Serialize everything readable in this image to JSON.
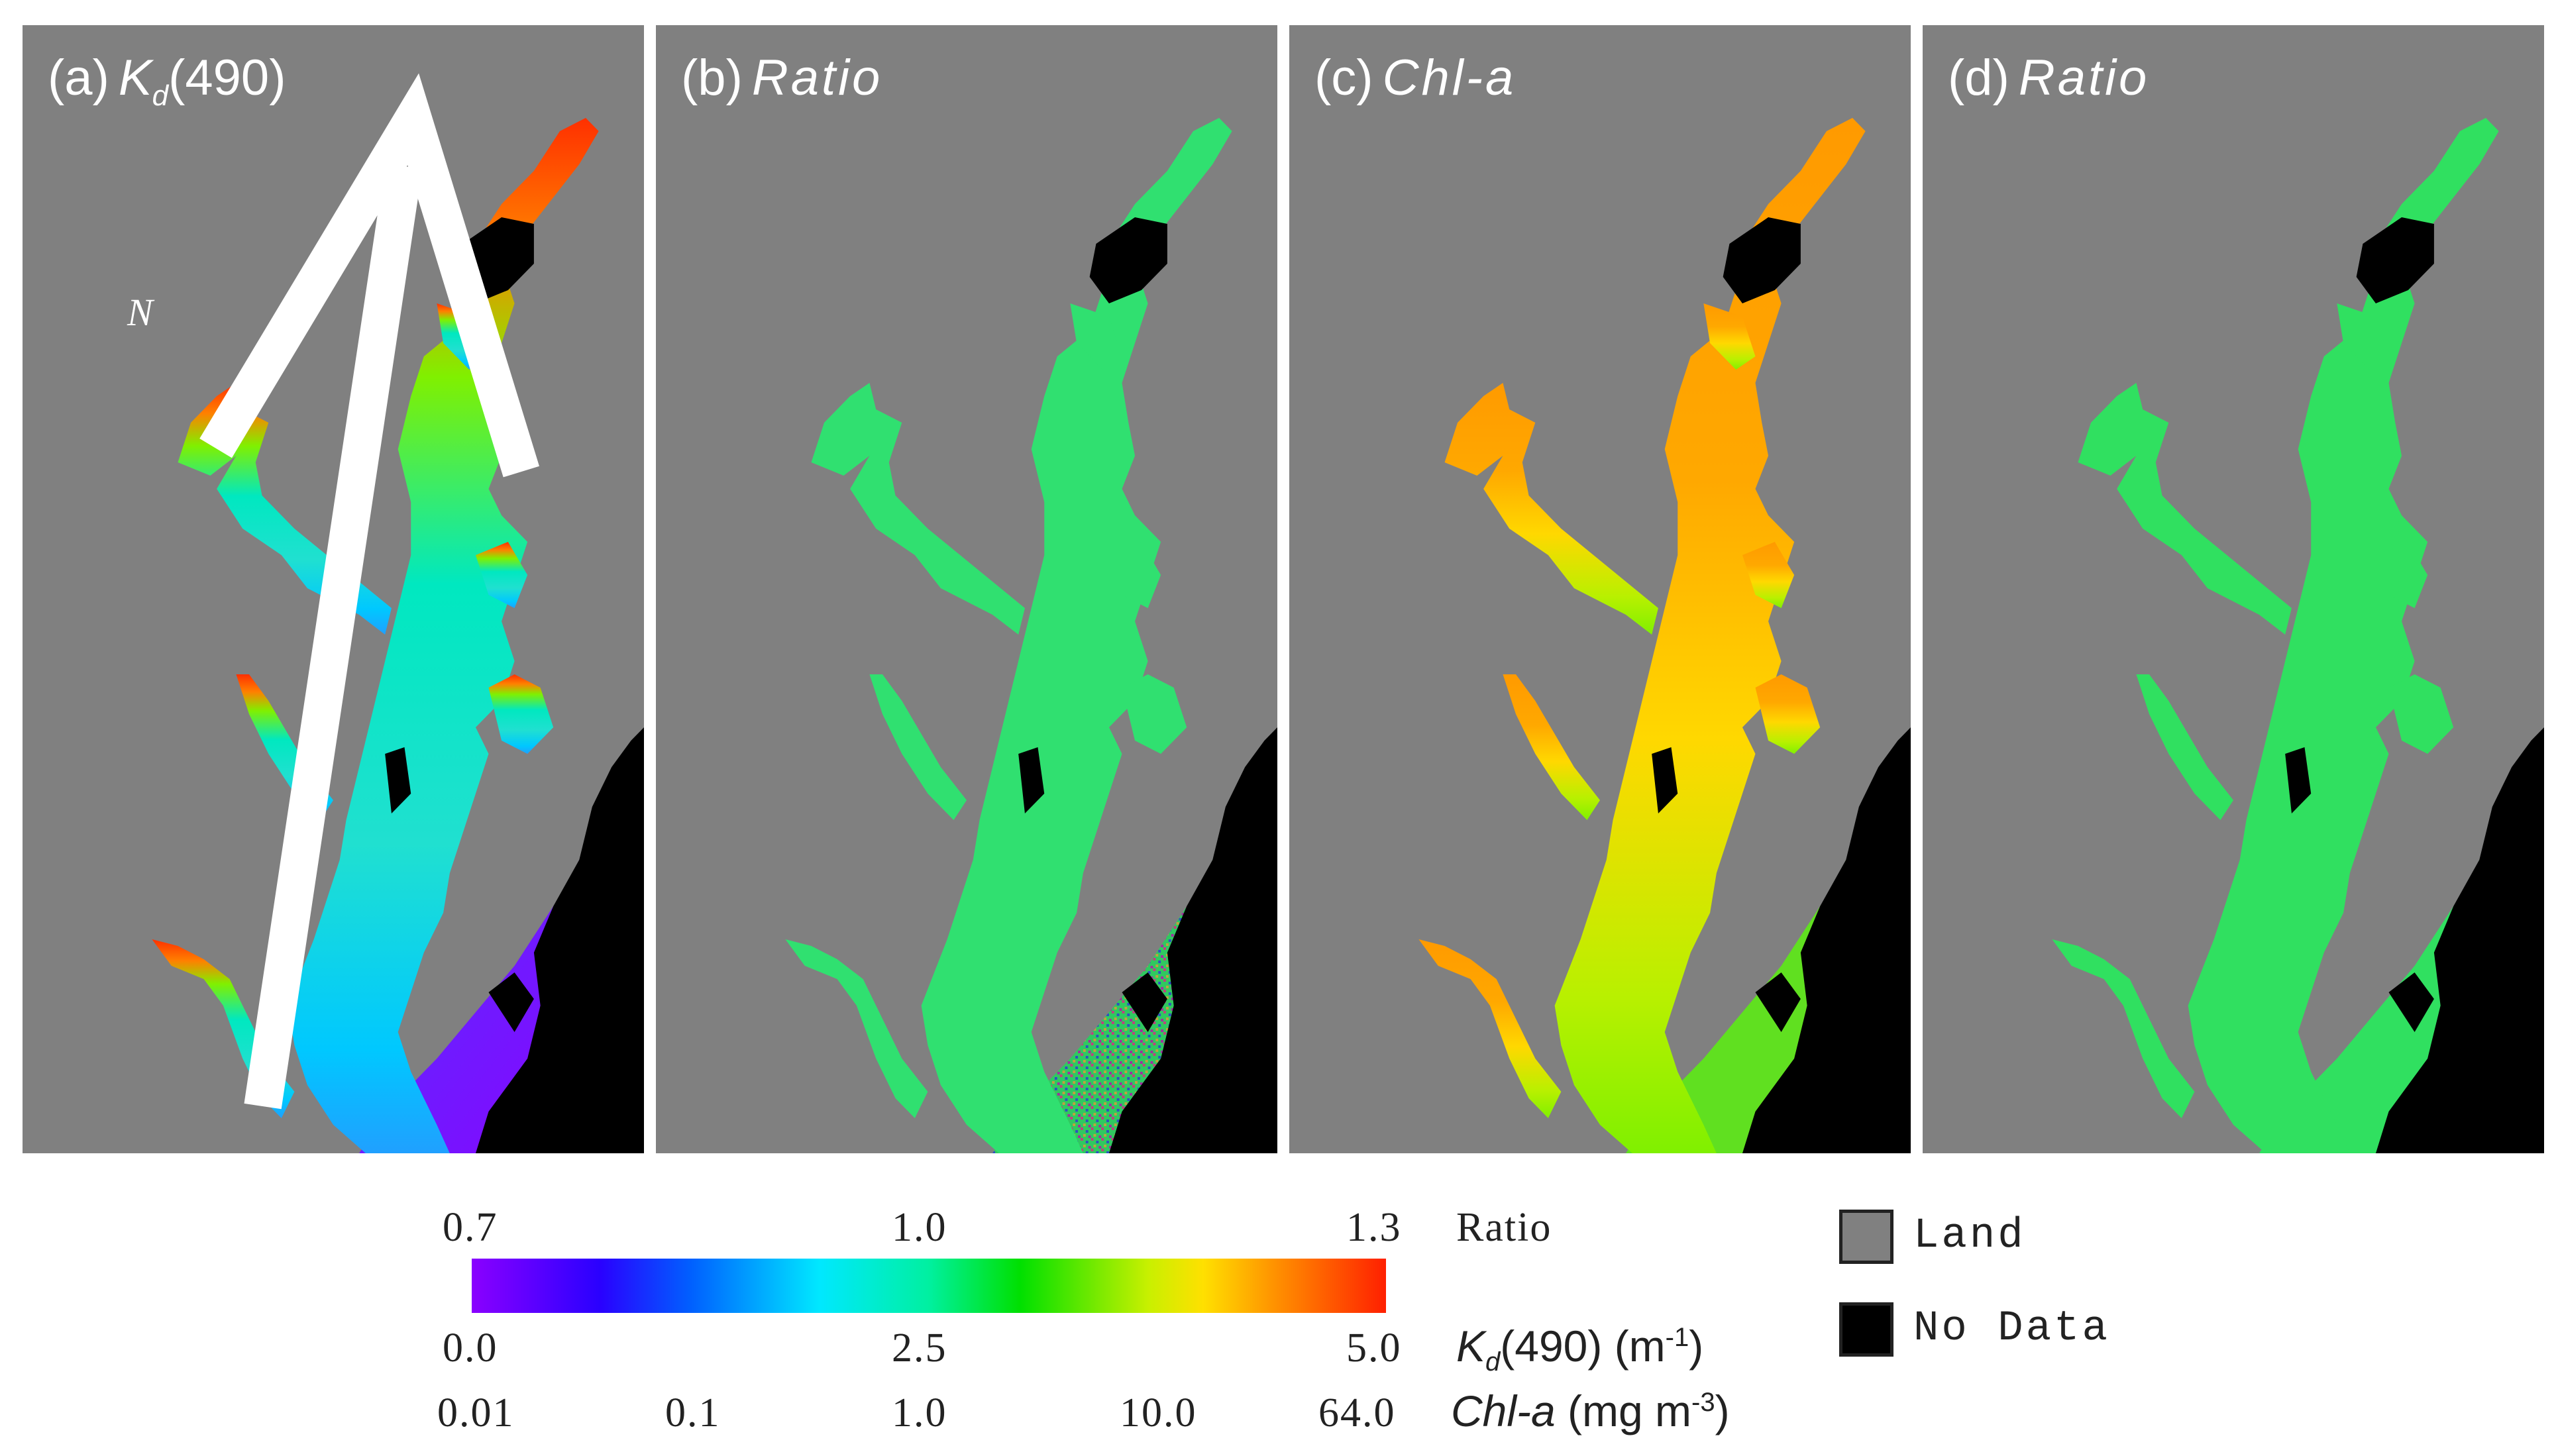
{
  "panels": [
    {
      "letter": "(a)",
      "var": "K",
      "sub": "d",
      "suffix": "(490)"
    },
    {
      "letter": "(b)",
      "var": "Ratio"
    },
    {
      "letter": "(c)",
      "var": "Chl-a"
    },
    {
      "letter": "(d)",
      "var": "Ratio"
    }
  ],
  "north_label": "N",
  "colorbar": {
    "ratio": {
      "ticks": [
        "0.7",
        "1.0",
        "1.3"
      ],
      "label": "Ratio"
    },
    "kd": {
      "ticks": [
        "0.0",
        "2.5",
        "5.0"
      ],
      "label_var": "K",
      "label_sub": "d",
      "label_rest": "(490) (m",
      "label_sup": "-1",
      "label_end": ")"
    },
    "chl": {
      "ticks": [
        "0.01",
        "0.1",
        "1.0",
        "10.0",
        "64.0"
      ],
      "label_var": "Chl-a",
      "label_rest": " (mg m",
      "label_sup": "-3",
      "label_end": ")"
    }
  },
  "legend": {
    "land": "Land",
    "nodata": "No Data",
    "land_color": "#808080",
    "nodata_color": "#000000"
  },
  "colors": {
    "background": "#808080",
    "nodata": "#000000"
  }
}
